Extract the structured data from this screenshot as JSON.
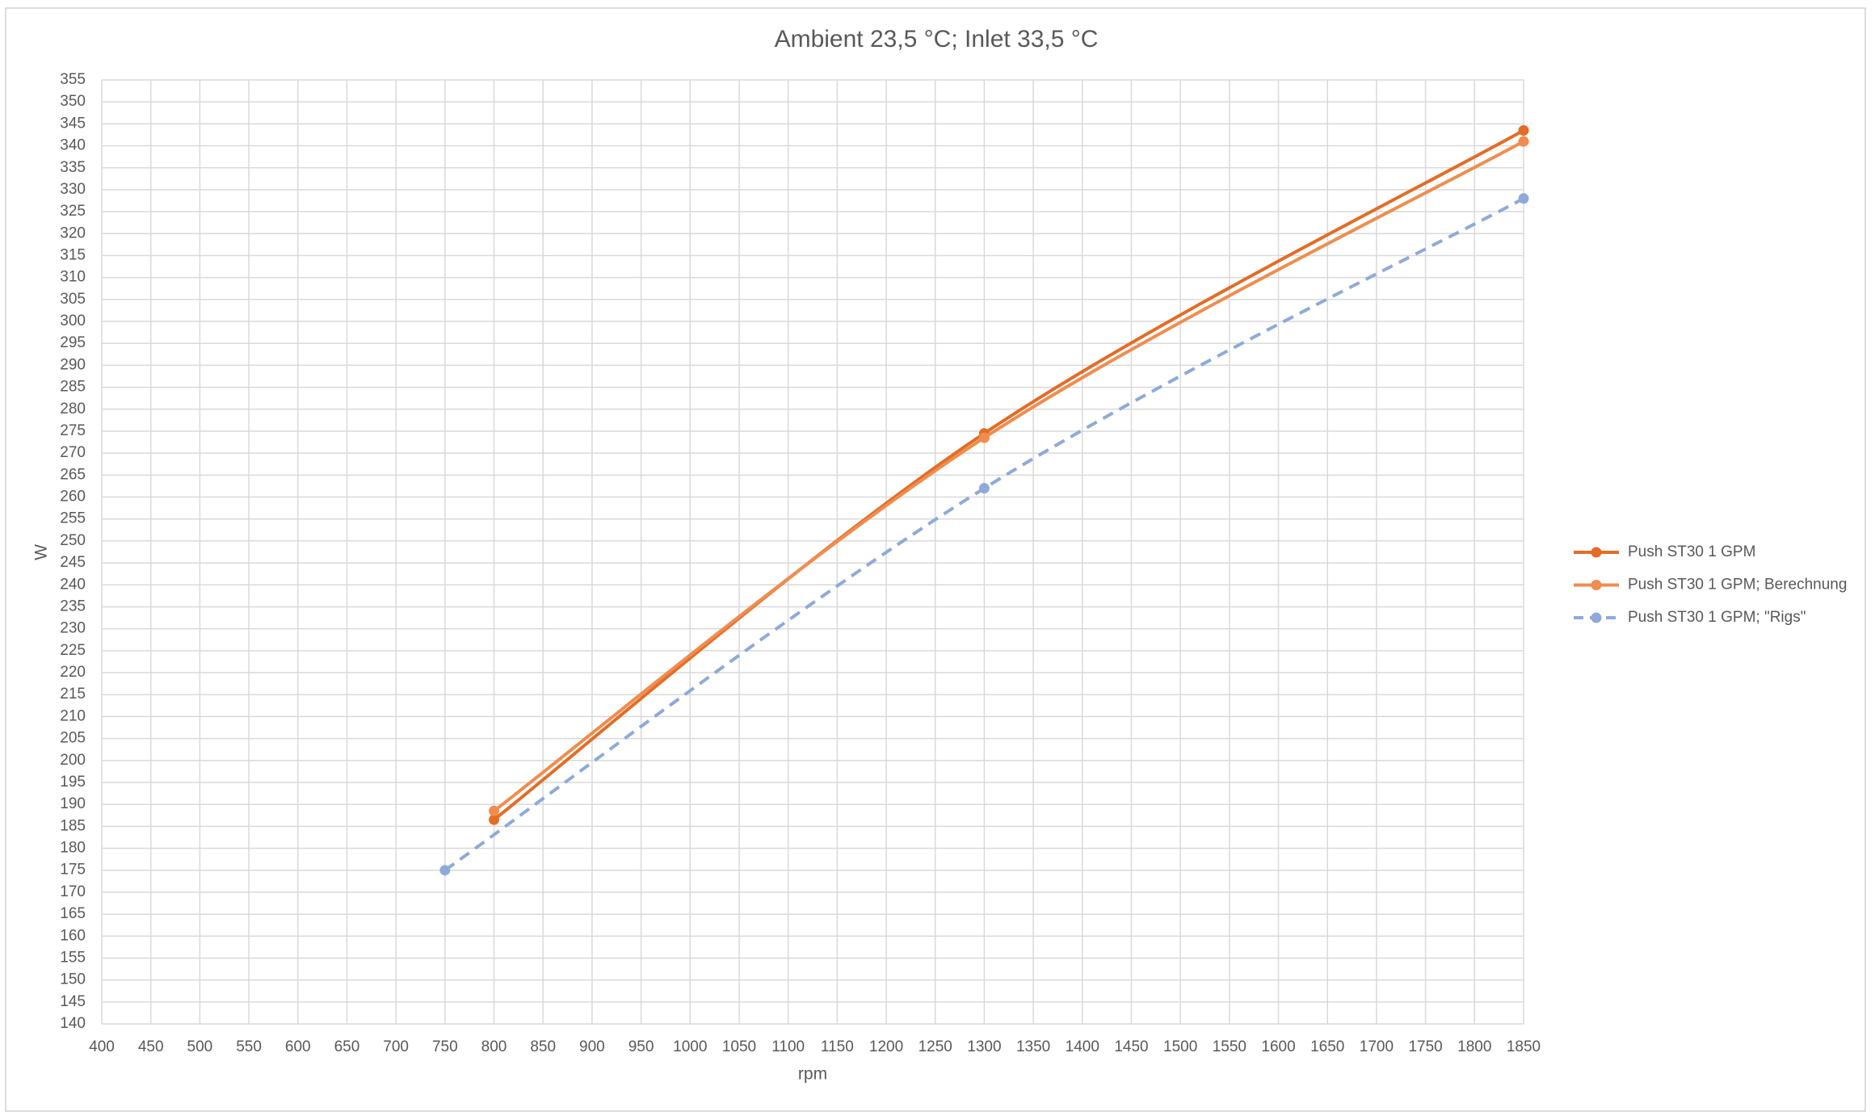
{
  "chart_data": {
    "type": "line",
    "title": "Ambient 23,5 °C; Inlet 33,5 °C",
    "x_label": "rpm",
    "y_label": "W",
    "xlim": [
      400,
      1850
    ],
    "xticks": [
      400,
      450,
      500,
      550,
      600,
      650,
      700,
      750,
      800,
      850,
      900,
      950,
      1000,
      1050,
      1100,
      1150,
      1200,
      1250,
      1300,
      1350,
      1400,
      1450,
      1500,
      1550,
      1600,
      1650,
      1700,
      1750,
      1800,
      1850
    ],
    "ylim": [
      140,
      355
    ],
    "yticks": [
      140,
      145,
      150,
      155,
      160,
      165,
      170,
      175,
      180,
      185,
      190,
      195,
      200,
      205,
      210,
      215,
      220,
      225,
      230,
      235,
      240,
      245,
      250,
      255,
      260,
      265,
      270,
      275,
      280,
      285,
      290,
      295,
      300,
      305,
      310,
      315,
      320,
      325,
      330,
      335,
      340,
      345,
      350,
      355
    ],
    "grid": true,
    "legend": "right",
    "smooth": true,
    "series": [
      {
        "name": "Push ST30 1 GPM",
        "color": "#e46c25",
        "line_style": "solid",
        "x": [
          800,
          1300,
          1850
        ],
        "values": [
          186.5,
          274.5,
          343.5
        ]
      },
      {
        "name": "Push ST30 1 GPM; Berechnung",
        "color": "#f08c4e",
        "line_style": "solid",
        "x": [
          800,
          1300,
          1850
        ],
        "values": [
          188.5,
          273.5,
          341
        ]
      },
      {
        "name": "Push ST30 1 GPM; \"Rigs\"",
        "color": "#8eaadb",
        "line_style": "dashed",
        "x": [
          750,
          1300,
          1850
        ],
        "values": [
          175,
          262,
          328
        ]
      }
    ]
  }
}
